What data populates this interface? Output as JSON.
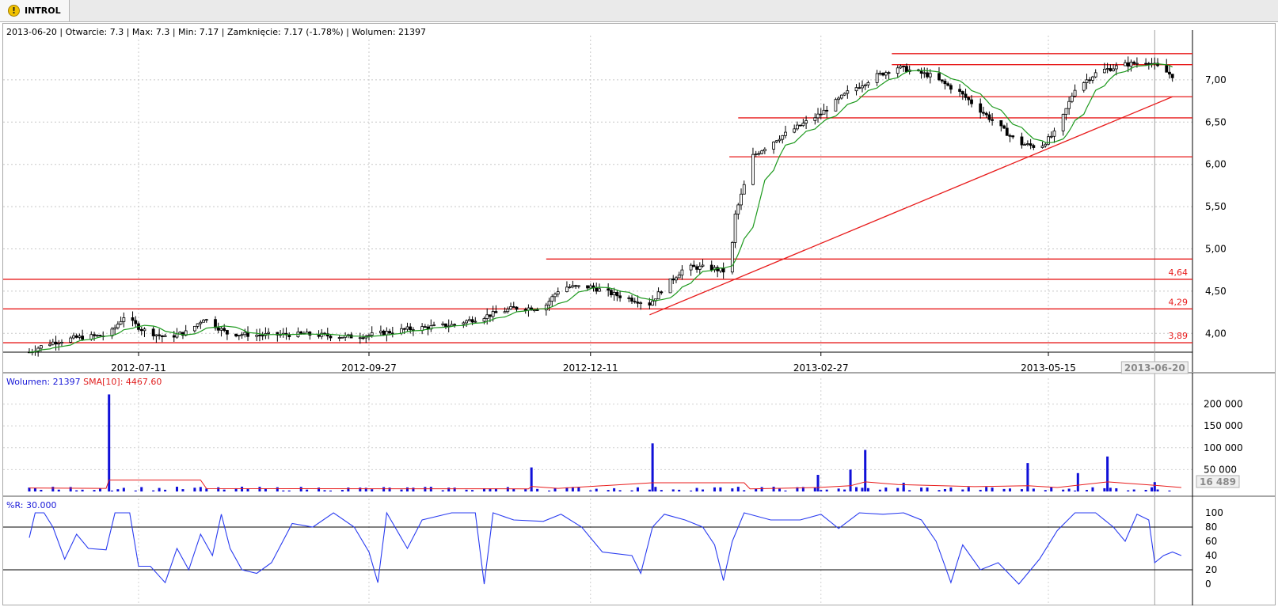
{
  "tab": {
    "label": "INTROL",
    "icon": "warning-icon"
  },
  "header": {
    "date": "2013-06-20",
    "open_label": "Otwarcie: 7.3",
    "max_label": "Max: 7.3",
    "min_label": "Min: 7.17",
    "close_label": "Zamknięcie: 7.17 (-1.78%)",
    "volume_label": "Wolumen: 21397"
  },
  "volume_legend": {
    "volume": "Wolumen: 21397",
    "sma": "SMA[10]: 4467.60"
  },
  "wr_legend": "%R: 30.000",
  "colors": {
    "up": "#ffffff",
    "down": "#000000",
    "ma": "#1e9a1e",
    "lines": "#e81c1c",
    "volume": "#1010d8",
    "wr": "#2a3cf0"
  },
  "chart_data": [
    {
      "type": "candlestick",
      "title": "INTROL",
      "x_labels": [
        "2012-07-11",
        "2012-09-27",
        "2012-12-11",
        "2013-02-27",
        "2013-05-15"
      ],
      "y_ticks": [
        "7,00",
        "6,50",
        "6,00",
        "5,50",
        "5,00",
        "4,50",
        "4,00"
      ],
      "ylim": [
        3.75,
        7.45
      ],
      "cursor_date": "2013-06-20",
      "horizontal_levels": [
        {
          "value": 7.31,
          "label": "",
          "x_from": "2013-03-23"
        },
        {
          "value": 7.18,
          "label": "",
          "x_from": "2013-03-23"
        },
        {
          "value": 6.8,
          "label": "",
          "x_from": "2013-03-12"
        },
        {
          "value": 6.55,
          "label": "",
          "x_from": "2013-01-30"
        },
        {
          "value": 6.09,
          "label": "",
          "x_from": "2013-01-27"
        },
        {
          "value": 4.88,
          "label": "",
          "x_from": "2012-11-26"
        },
        {
          "value": 4.64,
          "label": "4,64",
          "x_from": ""
        },
        {
          "value": 4.29,
          "label": "4,29",
          "x_from": ""
        },
        {
          "value": 3.89,
          "label": "3,89",
          "x_from": ""
        }
      ],
      "trend_line": {
        "from": [
          "2012-12-31",
          4.22
        ],
        "to": [
          "2013-06-26",
          6.8
        ]
      },
      "price_close_path": [
        [
          "2012-06-04",
          3.78
        ],
        [
          "2012-06-10",
          3.88
        ],
        [
          "2012-06-20",
          3.95
        ],
        [
          "2012-07-01",
          3.98
        ],
        [
          "2012-07-06",
          4.2
        ],
        [
          "2012-07-12",
          4.05
        ],
        [
          "2012-07-20",
          3.95
        ],
        [
          "2012-07-28",
          4.02
        ],
        [
          "2012-08-02",
          4.18
        ],
        [
          "2012-08-10",
          4.0
        ],
        [
          "2012-08-20",
          3.98
        ],
        [
          "2012-09-05",
          3.99
        ],
        [
          "2012-09-20",
          3.96
        ],
        [
          "2012-09-27",
          3.98
        ],
        [
          "2012-10-10",
          4.05
        ],
        [
          "2012-10-25",
          4.1
        ],
        [
          "2012-11-05",
          4.2
        ],
        [
          "2012-11-15",
          4.3
        ],
        [
          "2012-11-25",
          4.3
        ],
        [
          "2012-12-01",
          4.55
        ],
        [
          "2012-12-11",
          4.55
        ],
        [
          "2012-12-20",
          4.45
        ],
        [
          "2012-12-31",
          4.35
        ],
        [
          "2013-01-05",
          4.55
        ],
        [
          "2013-01-12",
          4.78
        ],
        [
          "2013-01-20",
          4.78
        ],
        [
          "2013-01-27",
          4.72
        ],
        [
          "2013-01-29",
          5.4
        ],
        [
          "2013-02-04",
          6.1
        ],
        [
          "2013-02-12",
          6.3
        ],
        [
          "2013-02-27",
          6.6
        ],
        [
          "2013-03-08",
          6.85
        ],
        [
          "2013-03-18",
          7.05
        ],
        [
          "2013-03-25",
          7.15
        ],
        [
          "2013-04-05",
          7.05
        ],
        [
          "2013-04-15",
          6.85
        ],
        [
          "2013-04-25",
          6.55
        ],
        [
          "2013-05-05",
          6.25
        ],
        [
          "2013-05-12",
          6.2
        ],
        [
          "2013-05-18",
          6.4
        ],
        [
          "2013-05-24",
          6.9
        ],
        [
          "2013-06-01",
          7.1
        ],
        [
          "2013-06-10",
          7.18
        ],
        [
          "2013-06-18",
          7.22
        ],
        [
          "2013-06-20",
          7.17
        ],
        [
          "2013-06-26",
          7.05
        ]
      ]
    },
    {
      "type": "bar",
      "title": "Wolumen",
      "y_ticks": [
        "200 000",
        "150 000",
        "100 000",
        "50 000"
      ],
      "ylim": [
        0,
        230000
      ],
      "last_value_box": "16 489",
      "spikes": [
        {
          "x": "2012-07-01",
          "value": 222000
        },
        {
          "x": "2012-11-21",
          "value": 55000
        },
        {
          "x": "2013-01-01",
          "value": 110000
        },
        {
          "x": "2013-03-09",
          "value": 50000
        },
        {
          "x": "2013-03-14",
          "value": 95000
        },
        {
          "x": "2013-03-27",
          "value": 20000
        },
        {
          "x": "2013-05-08",
          "value": 65000
        },
        {
          "x": "2013-06-04",
          "value": 80000
        },
        {
          "x": "2013-05-25",
          "value": 42000
        },
        {
          "x": "2013-02-26",
          "value": 38000
        },
        {
          "x": "2013-06-20",
          "value": 21397
        }
      ],
      "sma_label": "SMA[10]"
    },
    {
      "type": "line",
      "title": "%R",
      "y_ticks": [
        "100",
        "80",
        "60",
        "40",
        "20",
        "0"
      ],
      "ylim": [
        0,
        100
      ],
      "levels": [
        80,
        20
      ],
      "series": [
        {
          "x": "2012-06-04",
          "v": 65
        },
        {
          "x": "2012-06-06",
          "v": 100
        },
        {
          "x": "2012-06-09",
          "v": 100
        },
        {
          "x": "2012-06-12",
          "v": 80
        },
        {
          "x": "2012-06-16",
          "v": 35
        },
        {
          "x": "2012-06-20",
          "v": 70
        },
        {
          "x": "2012-06-24",
          "v": 50
        },
        {
          "x": "2012-06-30",
          "v": 48
        },
        {
          "x": "2012-07-03",
          "v": 100
        },
        {
          "x": "2012-07-08",
          "v": 100
        },
        {
          "x": "2012-07-11",
          "v": 25
        },
        {
          "x": "2012-07-15",
          "v": 25
        },
        {
          "x": "2012-07-20",
          "v": 2
        },
        {
          "x": "2012-07-24",
          "v": 50
        },
        {
          "x": "2012-07-28",
          "v": 20
        },
        {
          "x": "2012-08-01",
          "v": 70
        },
        {
          "x": "2012-08-05",
          "v": 40
        },
        {
          "x": "2012-08-08",
          "v": 98
        },
        {
          "x": "2012-08-11",
          "v": 50
        },
        {
          "x": "2012-08-15",
          "v": 20
        },
        {
          "x": "2012-08-20",
          "v": 15
        },
        {
          "x": "2012-08-25",
          "v": 30
        },
        {
          "x": "2012-09-01",
          "v": 85
        },
        {
          "x": "2012-09-08",
          "v": 80
        },
        {
          "x": "2012-09-15",
          "v": 100
        },
        {
          "x": "2012-09-22",
          "v": 80
        },
        {
          "x": "2012-09-27",
          "v": 45
        },
        {
          "x": "2012-09-30",
          "v": 2
        },
        {
          "x": "2012-10-03",
          "v": 100
        },
        {
          "x": "2012-10-10",
          "v": 50
        },
        {
          "x": "2012-10-15",
          "v": 90
        },
        {
          "x": "2012-10-25",
          "v": 100
        },
        {
          "x": "2012-11-02",
          "v": 100
        },
        {
          "x": "2012-11-05",
          "v": 0
        },
        {
          "x": "2012-11-08",
          "v": 100
        },
        {
          "x": "2012-11-15",
          "v": 90
        },
        {
          "x": "2012-11-25",
          "v": 88
        },
        {
          "x": "2012-12-01",
          "v": 98
        },
        {
          "x": "2012-12-08",
          "v": 80
        },
        {
          "x": "2012-12-15",
          "v": 45
        },
        {
          "x": "2012-12-25",
          "v": 40
        },
        {
          "x": "2012-12-28",
          "v": 15
        },
        {
          "x": "2013-01-01",
          "v": 80
        },
        {
          "x": "2013-01-05",
          "v": 98
        },
        {
          "x": "2013-01-12",
          "v": 90
        },
        {
          "x": "2013-01-18",
          "v": 80
        },
        {
          "x": "2013-01-22",
          "v": 55
        },
        {
          "x": "2013-01-25",
          "v": 5
        },
        {
          "x": "2013-01-28",
          "v": 60
        },
        {
          "x": "2013-02-01",
          "v": 100
        },
        {
          "x": "2013-02-10",
          "v": 90
        },
        {
          "x": "2013-02-20",
          "v": 90
        },
        {
          "x": "2013-02-27",
          "v": 98
        },
        {
          "x": "2013-03-05",
          "v": 78
        },
        {
          "x": "2013-03-12",
          "v": 100
        },
        {
          "x": "2013-03-20",
          "v": 98
        },
        {
          "x": "2013-03-27",
          "v": 100
        },
        {
          "x": "2013-04-02",
          "v": 90
        },
        {
          "x": "2013-04-07",
          "v": 60
        },
        {
          "x": "2013-04-12",
          "v": 2
        },
        {
          "x": "2013-04-16",
          "v": 55
        },
        {
          "x": "2013-04-22",
          "v": 20
        },
        {
          "x": "2013-04-28",
          "v": 30
        },
        {
          "x": "2013-05-05",
          "v": 0
        },
        {
          "x": "2013-05-12",
          "v": 35
        },
        {
          "x": "2013-05-18",
          "v": 75
        },
        {
          "x": "2013-05-24",
          "v": 100
        },
        {
          "x": "2013-05-31",
          "v": 100
        },
        {
          "x": "2013-06-06",
          "v": 80
        },
        {
          "x": "2013-06-10",
          "v": 60
        },
        {
          "x": "2013-06-14",
          "v": 98
        },
        {
          "x": "2013-06-18",
          "v": 90
        },
        {
          "x": "2013-06-20",
          "v": 30
        },
        {
          "x": "2013-06-23",
          "v": 40
        },
        {
          "x": "2013-06-26",
          "v": 45
        },
        {
          "x": "2013-06-29",
          "v": 40
        }
      ]
    }
  ]
}
